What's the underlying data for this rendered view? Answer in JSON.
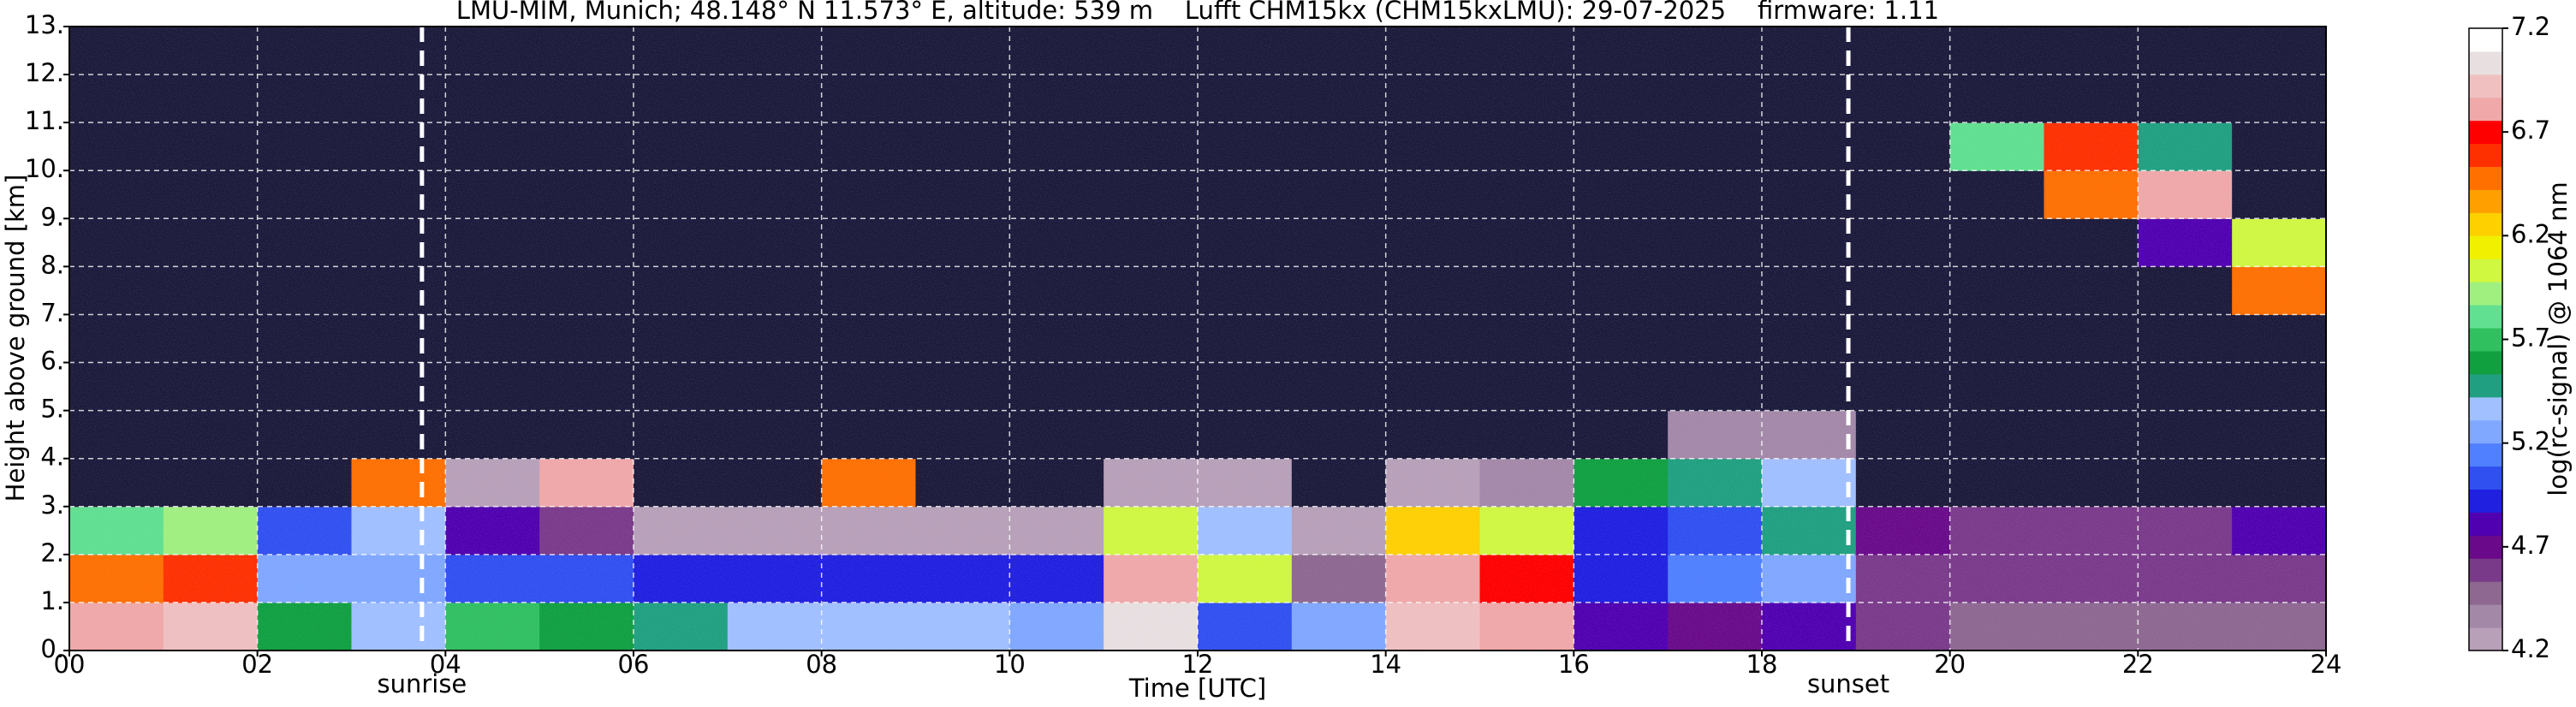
{
  "chart_data": {
    "type": "heatmap",
    "title": "LMU-MIM, Munich; 48.148° N 11.573° E, altitude: 539 m    Lufft CHM15kx (CHM15kxLMU): 29-07-2025    firmware: 1.11",
    "xlabel": "Time [UTC]",
    "ylabel": "Height above ground [km]",
    "colorbar_label": "log(rc-signal) @ 1064 nm",
    "xlim": [
      0,
      24
    ],
    "ylim": [
      0,
      13
    ],
    "xticks": [
      {
        "value": 0,
        "label": "00"
      },
      {
        "value": 2,
        "label": "02"
      },
      {
        "value": 4,
        "label": "04"
      },
      {
        "value": 6,
        "label": "06"
      },
      {
        "value": 8,
        "label": "08"
      },
      {
        "value": 10,
        "label": "10"
      },
      {
        "value": 12,
        "label": "12"
      },
      {
        "value": 14,
        "label": "14"
      },
      {
        "value": 16,
        "label": "16"
      },
      {
        "value": 18,
        "label": "18"
      },
      {
        "value": 20,
        "label": "20"
      },
      {
        "value": 22,
        "label": "22"
      },
      {
        "value": 24,
        "label": "24"
      }
    ],
    "yticks": [
      {
        "value": 0,
        "label": "0."
      },
      {
        "value": 1,
        "label": "1."
      },
      {
        "value": 2,
        "label": "2."
      },
      {
        "value": 3,
        "label": "3."
      },
      {
        "value": 4,
        "label": "4."
      },
      {
        "value": 5,
        "label": "5."
      },
      {
        "value": 6,
        "label": "6."
      },
      {
        "value": 7,
        "label": "7."
      },
      {
        "value": 8,
        "label": "8."
      },
      {
        "value": 9,
        "label": "9."
      },
      {
        "value": 10,
        "label": "10."
      },
      {
        "value": 11,
        "label": "11."
      },
      {
        "value": 12,
        "label": "12."
      },
      {
        "value": 13,
        "label": "13."
      }
    ],
    "grid": true,
    "xbins": [
      0,
      1,
      2,
      3,
      4,
      5,
      6,
      7,
      8,
      9,
      10,
      11,
      12,
      13,
      14,
      15,
      16,
      17,
      18,
      19,
      20,
      21,
      22,
      23,
      24
    ],
    "ybins": [
      0,
      1,
      2,
      3,
      4,
      5,
      6,
      7,
      8,
      9,
      10,
      11,
      12,
      13
    ],
    "z": [
      [
        6.8,
        6.9,
        5.6,
        5.4,
        5.7,
        5.6,
        5.5,
        5.4,
        5.4,
        5.4,
        5.2,
        7.0,
        5.0,
        5.3,
        6.9,
        6.8,
        4.8,
        4.7,
        4.8,
        4.6,
        4.5,
        4.5,
        4.5,
        4.5
      ],
      [
        6.5,
        6.6,
        5.3,
        5.2,
        5.0,
        5.0,
        4.9,
        4.9,
        4.9,
        4.9,
        4.9,
        6.8,
        6.0,
        4.5,
        6.8,
        6.7,
        4.9,
        5.1,
        5.2,
        4.6,
        4.6,
        4.6,
        4.6,
        4.6
      ],
      [
        5.8,
        5.9,
        5.0,
        5.4,
        4.8,
        4.6,
        4.3,
        4.2,
        4.3,
        4.3,
        4.3,
        6.0,
        5.4,
        4.3,
        6.2,
        6.0,
        4.9,
        5.0,
        5.5,
        4.7,
        4.6,
        4.6,
        4.6,
        4.8
      ],
      [
        4.1,
        4.1,
        4.1,
        6.5,
        4.2,
        6.8,
        4.1,
        4.1,
        6.5,
        4.1,
        4.1,
        4.2,
        4.2,
        4.1,
        4.3,
        4.4,
        5.6,
        5.5,
        5.4,
        4.1,
        4.1,
        4.1,
        4.1,
        4.1
      ],
      [
        4.0,
        4.0,
        4.0,
        4.1,
        4.0,
        4.0,
        4.0,
        4.0,
        4.1,
        4.1,
        4.1,
        4.1,
        4.1,
        4.0,
        4.0,
        4.0,
        4.0,
        4.4,
        4.4,
        4.0,
        4.0,
        4.0,
        4.0,
        4.0
      ],
      [
        4.0,
        4.0,
        4.0,
        4.0,
        4.0,
        4.0,
        4.0,
        4.0,
        4.1,
        4.1,
        4.1,
        4.1,
        4.1,
        4.1,
        4.0,
        4.0,
        4.0,
        4.0,
        4.0,
        4.0,
        4.0,
        4.0,
        4.0,
        4.0
      ],
      [
        4.0,
        4.0,
        4.0,
        4.0,
        4.0,
        4.0,
        4.0,
        4.0,
        4.1,
        4.1,
        4.1,
        4.1,
        4.1,
        4.1,
        4.0,
        4.0,
        4.0,
        4.0,
        4.0,
        4.0,
        4.0,
        4.0,
        4.0,
        4.0
      ],
      [
        4.0,
        4.0,
        4.0,
        4.0,
        4.0,
        4.0,
        4.0,
        4.0,
        4.1,
        4.1,
        4.1,
        4.1,
        4.1,
        4.1,
        4.0,
        4.0,
        4.0,
        4.0,
        4.0,
        4.0,
        4.0,
        4.0,
        4.0,
        6.5
      ],
      [
        4.0,
        4.0,
        4.0,
        4.0,
        4.0,
        4.0,
        4.0,
        4.0,
        4.1,
        4.1,
        4.1,
        4.1,
        4.1,
        4.1,
        4.0,
        4.0,
        4.0,
        4.0,
        4.0,
        4.0,
        4.0,
        4.0,
        4.8,
        6.0
      ],
      [
        4.0,
        4.0,
        4.0,
        4.0,
        4.0,
        4.0,
        4.0,
        4.0,
        4.1,
        4.1,
        4.1,
        4.1,
        4.1,
        4.1,
        4.0,
        4.0,
        4.0,
        4.0,
        4.0,
        4.0,
        4.0,
        6.5,
        6.8,
        4.0
      ],
      [
        4.0,
        4.0,
        4.0,
        4.0,
        4.0,
        4.0,
        4.0,
        4.0,
        4.1,
        4.1,
        4.1,
        4.1,
        4.1,
        4.1,
        4.0,
        4.0,
        4.0,
        4.0,
        4.0,
        4.0,
        5.8,
        6.6,
        5.5,
        4.0
      ],
      [
        4.0,
        4.0,
        4.0,
        4.0,
        4.0,
        4.0,
        4.0,
        4.0,
        4.1,
        4.1,
        4.1,
        4.1,
        4.1,
        4.1,
        4.0,
        4.0,
        4.0,
        4.0,
        4.0,
        4.0,
        4.0,
        4.0,
        4.0,
        4.0
      ],
      [
        4.0,
        4.0,
        4.0,
        4.0,
        4.0,
        4.0,
        4.0,
        4.0,
        4.1,
        4.1,
        4.1,
        4.1,
        4.1,
        4.1,
        4.0,
        4.0,
        4.0,
        4.0,
        4.0,
        4.0,
        4.0,
        4.0,
        4.0,
        4.0
      ]
    ],
    "zlim": [
      4.2,
      7.2
    ],
    "zticks": [
      4.2,
      4.7,
      5.2,
      5.7,
      6.2,
      6.7,
      7.2
    ],
    "under_color": "#1c1a3a",
    "colors": [
      "#b8a0b8",
      "#a488a8",
      "#8e6890",
      "#7a3a8a",
      "#6a0a8a",
      "#5000b0",
      "#2020e0",
      "#3050f0",
      "#5080ff",
      "#80a8ff",
      "#a0c0ff",
      "#20a080",
      "#10a040",
      "#30c060",
      "#60e090",
      "#a0f080",
      "#d0f840",
      "#f0f000",
      "#ffd000",
      "#ffa000",
      "#ff7000",
      "#ff3000",
      "#ff0000",
      "#f0a8a8",
      "#f0c0c0",
      "#e8e0e0",
      "#ffffff"
    ],
    "annotations": [
      {
        "text": "sunrise",
        "x": 3.75
      },
      {
        "text": "sunset",
        "x": 18.92
      }
    ]
  }
}
